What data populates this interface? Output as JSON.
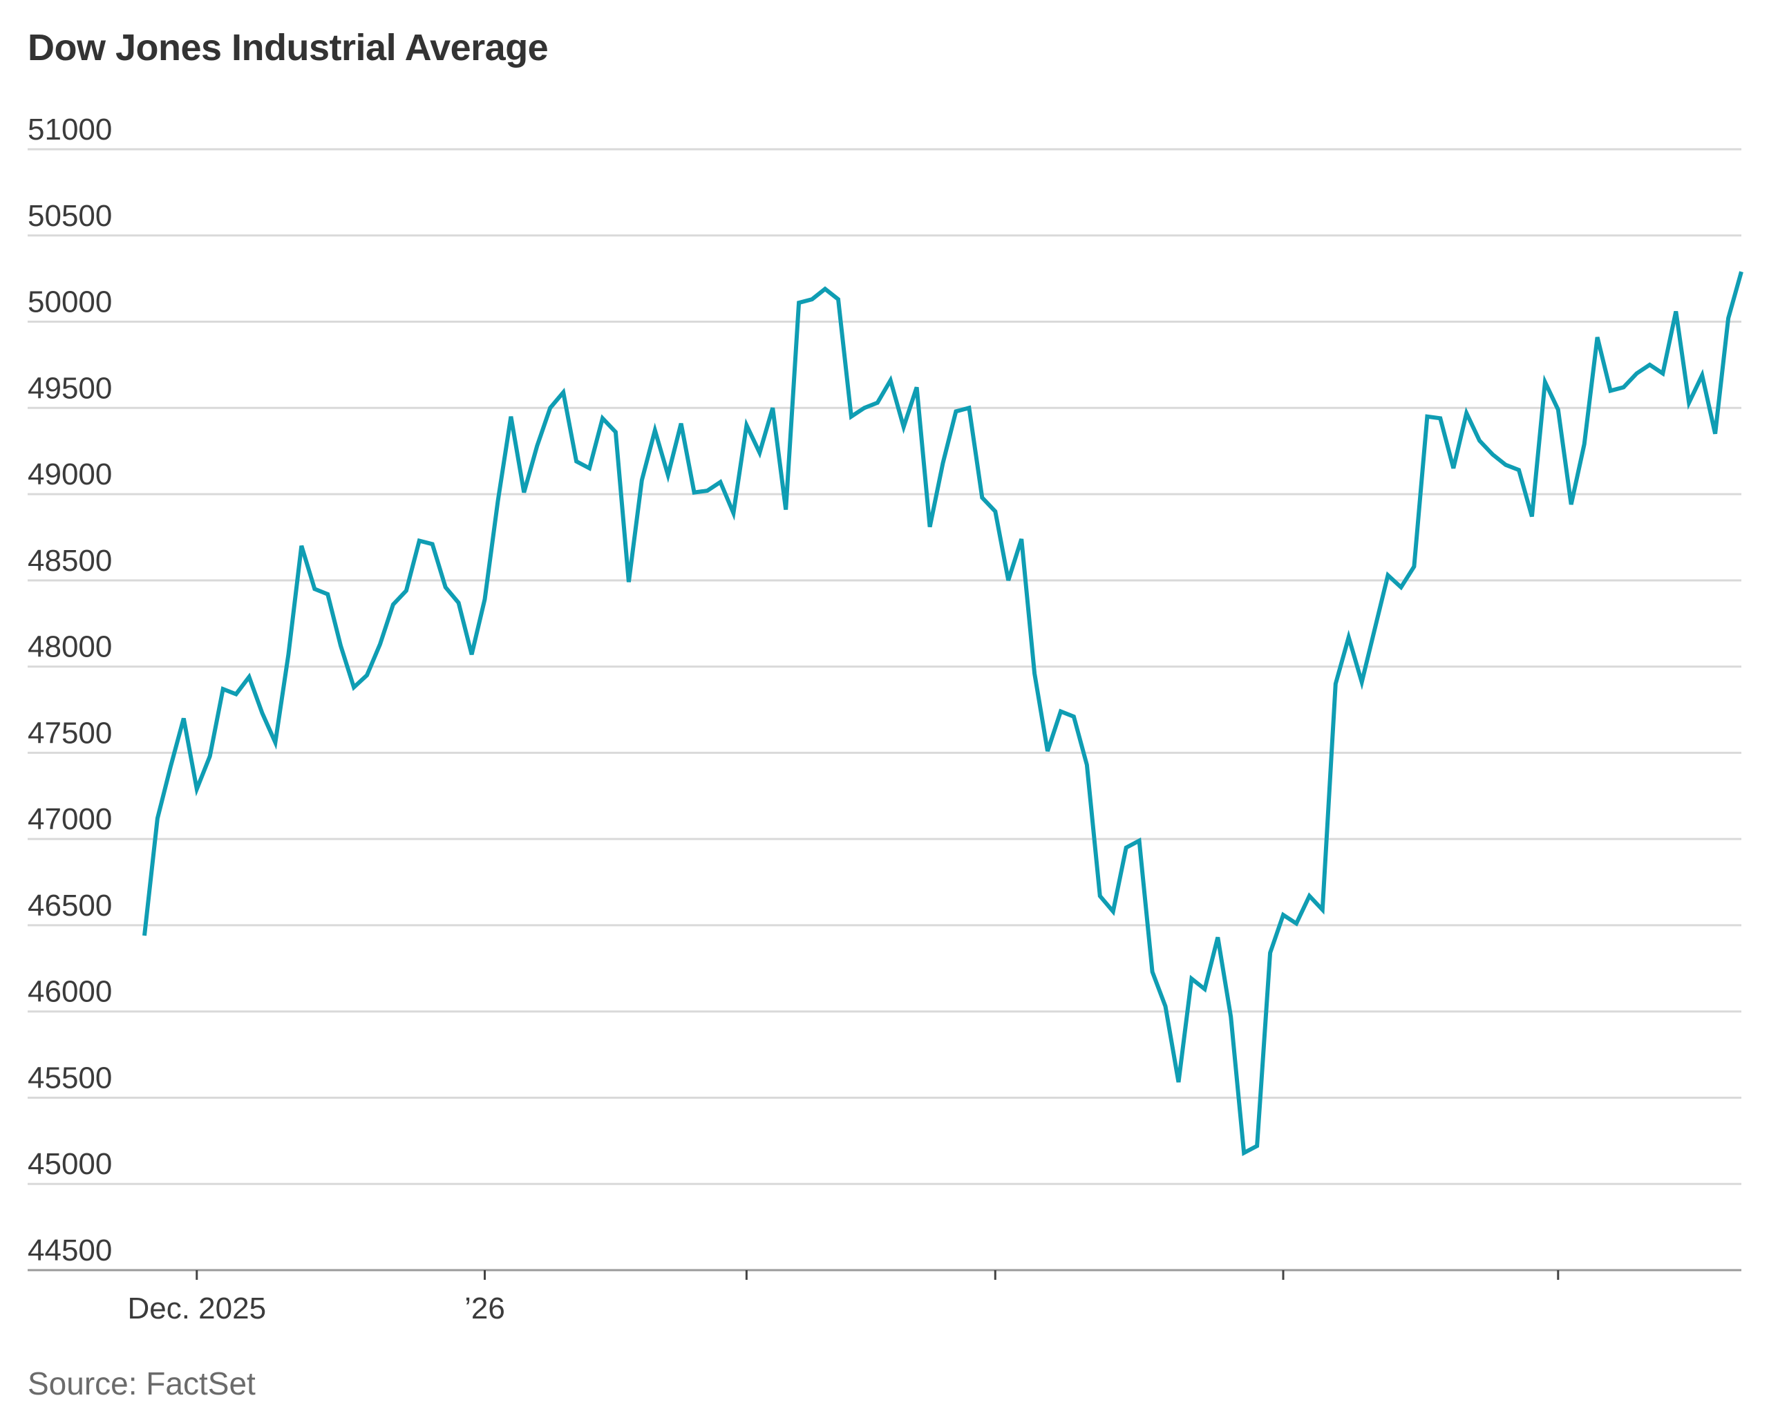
{
  "chart_data": {
    "type": "line",
    "title": "Dow Jones Industrial Average",
    "source": "Source: FactSet",
    "ylim": [
      44500,
      51000
    ],
    "yticks": [
      51000,
      50500,
      50000,
      49500,
      49000,
      48500,
      48000,
      47500,
      47000,
      46500,
      46000,
      45500,
      45000,
      44500
    ],
    "x_tick_labels": [
      {
        "label": "Dec. 2025",
        "index": 4
      },
      {
        "label": "’26",
        "index": 26
      },
      {
        "label": "",
        "index": 46
      },
      {
        "label": "",
        "index": 65
      },
      {
        "label": "",
        "index": 87
      },
      {
        "label": "",
        "index": 108
      }
    ],
    "grid": true,
    "legend": "none",
    "line_color": "#0f9db3",
    "series": [
      {
        "values": [
          46440,
          47120,
          47420,
          47700,
          47290,
          47480,
          47870,
          47840,
          47940,
          47730,
          47560,
          48070,
          48700,
          48450,
          48420,
          48120,
          47880,
          47950,
          48130,
          48360,
          48440,
          48730,
          48710,
          48460,
          48370,
          48070,
          48390,
          48960,
          49450,
          49010,
          49280,
          49500,
          49590,
          49190,
          49150,
          49440,
          49360,
          48490,
          49080,
          49370,
          49110,
          49410,
          49010,
          49020,
          49070,
          48890,
          49400,
          49240,
          49500,
          48910,
          50110,
          50130,
          50190,
          50130,
          49450,
          49500,
          49530,
          49660,
          49390,
          49620,
          48810,
          49180,
          49480,
          49500,
          48980,
          48900,
          48500,
          48740,
          47960,
          47510,
          47740,
          47710,
          47430,
          46670,
          46580,
          46950,
          46990,
          46230,
          46030,
          45590,
          46190,
          46130,
          46430,
          45970,
          45180,
          45220,
          46340,
          46560,
          46510,
          46670,
          46590,
          47900,
          48170,
          47910,
          48220,
          48530,
          48460,
          48580,
          49450,
          49440,
          49150,
          49470,
          49310,
          49230,
          49170,
          49140,
          48870,
          49650,
          49490,
          48940,
          49290,
          49910,
          49600,
          49620,
          49700,
          49750,
          49700,
          50060,
          49530,
          49690,
          49350,
          50020,
          50290
        ]
      }
    ]
  }
}
